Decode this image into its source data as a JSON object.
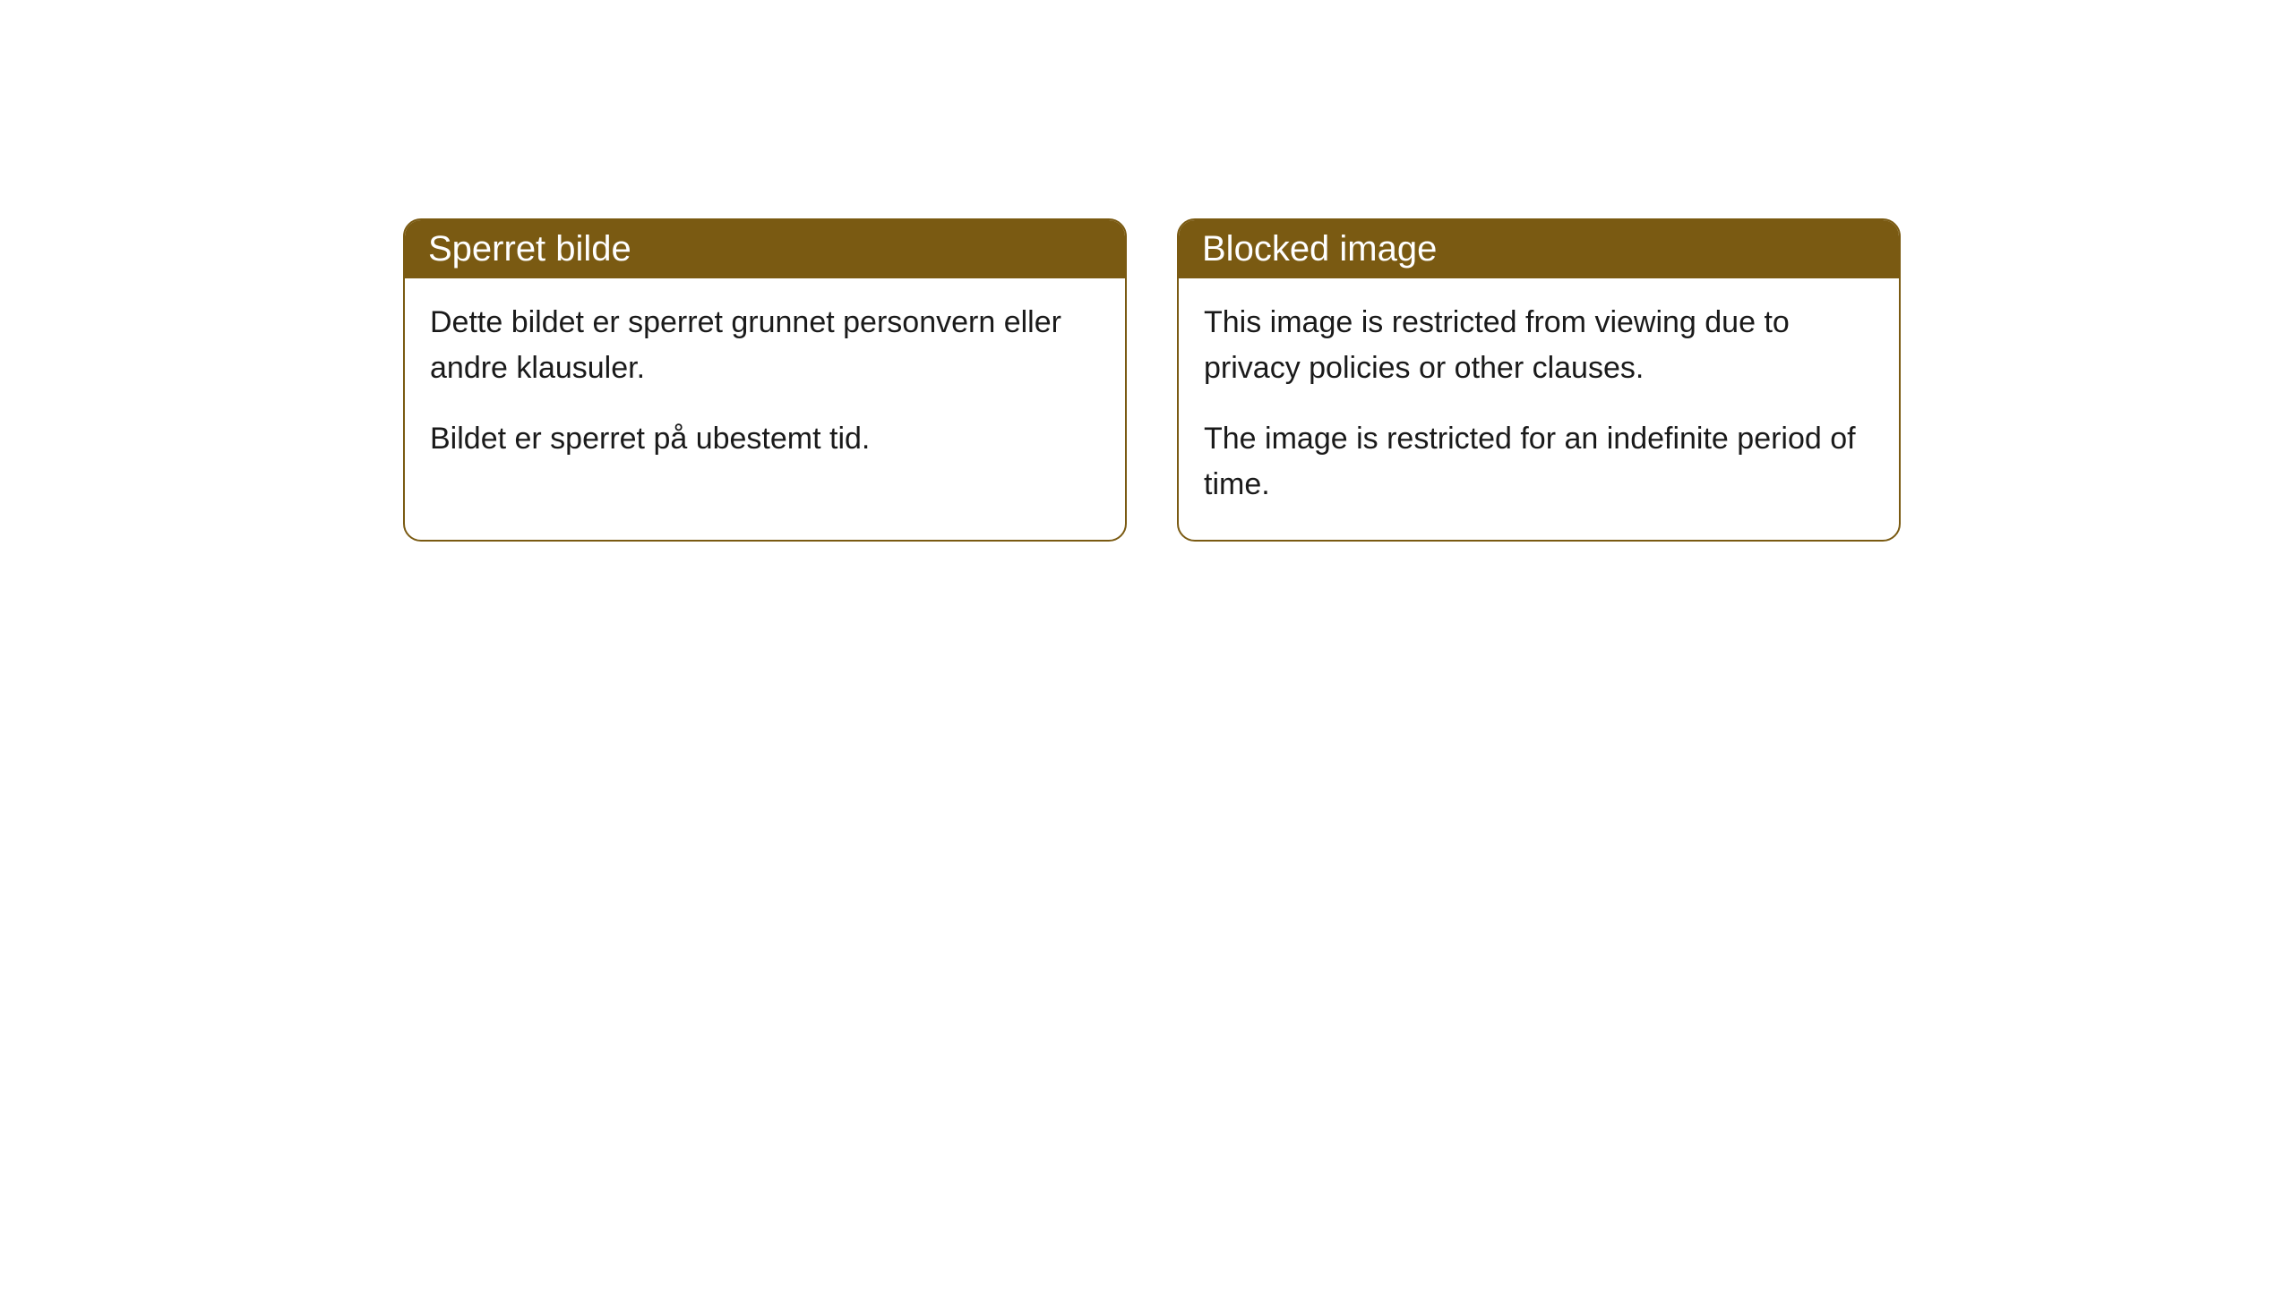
{
  "cards": [
    {
      "title": "Sperret bilde",
      "paragraph1": "Dette bildet er sperret grunnet personvern eller andre klausuler.",
      "paragraph2": "Bildet er sperret på ubestemt tid."
    },
    {
      "title": "Blocked image",
      "paragraph1": "This image is restricted from viewing due to privacy policies or other clauses.",
      "paragraph2": "The image is restricted for an indefinite period of time."
    }
  ],
  "style": {
    "header_bg_color": "#7a5a12",
    "header_text_color": "#ffffff",
    "body_bg_color": "#ffffff",
    "body_text_color": "#1a1a1a",
    "border_color": "#7a5a12",
    "border_radius": 20,
    "title_fontsize": 40,
    "body_fontsize": 34
  }
}
